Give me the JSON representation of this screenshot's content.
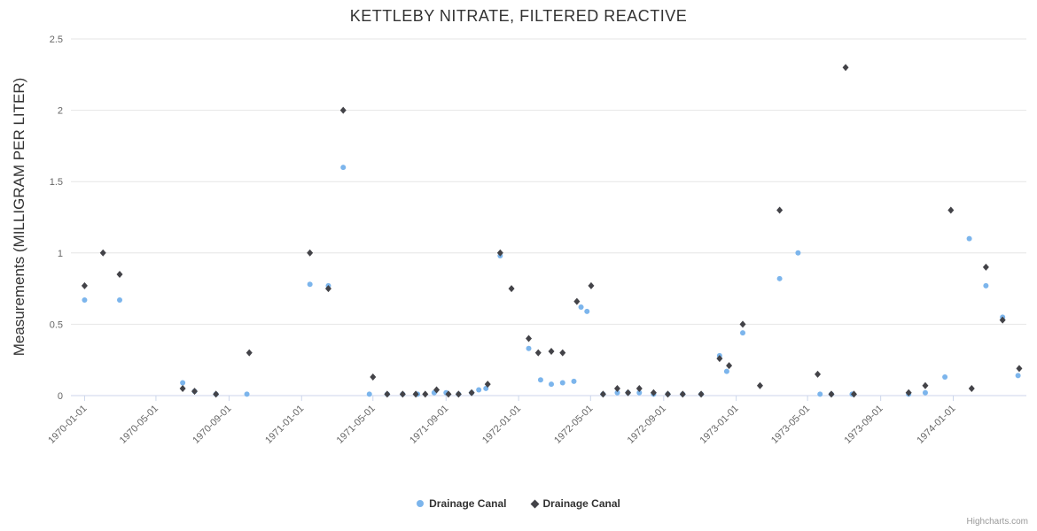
{
  "title": "KETTLEBY NITRATE, FILTERED REACTIVE",
  "credits": "Highcharts.com",
  "colors": {
    "series1": "#7cb5ec",
    "series2": "#434348",
    "grid": "#e6e6e6",
    "axis": "#ccd6eb"
  },
  "chart_data": {
    "type": "scatter",
    "title": "KETTLEBY NITRATE, FILTERED REACTIVE",
    "xlabel": "",
    "ylabel": "Measurements (MILLIGRAM PER LITER)",
    "ylim": [
      0,
      2.5
    ],
    "y_ticks": [
      0,
      0.5,
      1,
      1.5,
      2,
      2.5
    ],
    "x_range": [
      "1969-12-09",
      "1974-05-04"
    ],
    "x_ticks": [
      "1970-01-01",
      "1970-05-01",
      "1970-09-01",
      "1971-01-01",
      "1971-05-01",
      "1971-09-01",
      "1972-01-01",
      "1972-05-01",
      "1972-09-01",
      "1973-01-01",
      "1973-05-01",
      "1973-09-01",
      "1974-01-01"
    ],
    "grid": "horizontal",
    "legend_position": "bottom",
    "series": [
      {
        "name": "Drainage Canal",
        "marker": "circle",
        "color": "#7cb5ec",
        "points": [
          [
            "1970-01-01",
            0.67
          ],
          [
            "1970-03-01",
            0.67
          ],
          [
            "1970-06-15",
            0.09
          ],
          [
            "1970-07-05",
            0.03
          ],
          [
            "1970-08-10",
            0.01
          ],
          [
            "1970-10-01",
            0.01
          ],
          [
            "1971-01-15",
            0.78
          ],
          [
            "1971-02-15",
            0.77
          ],
          [
            "1971-03-12",
            1.6
          ],
          [
            "1971-04-25",
            0.01
          ],
          [
            "1971-05-25",
            0.01
          ],
          [
            "1971-06-20",
            0.01
          ],
          [
            "1971-07-15",
            0.01
          ],
          [
            "1971-08-12",
            0.02
          ],
          [
            "1971-09-01",
            0.02
          ],
          [
            "1971-09-22",
            0.01
          ],
          [
            "1971-10-14",
            0.02
          ],
          [
            "1971-10-26",
            0.04
          ],
          [
            "1971-11-07",
            0.05
          ],
          [
            "1971-12-01",
            0.98
          ],
          [
            "1972-01-18",
            0.33
          ],
          [
            "1972-02-07",
            0.11
          ],
          [
            "1972-02-25",
            0.08
          ],
          [
            "1972-03-15",
            0.09
          ],
          [
            "1972-04-03",
            0.1
          ],
          [
            "1972-04-15",
            0.62
          ],
          [
            "1972-04-25",
            0.59
          ],
          [
            "1972-05-22",
            0.01
          ],
          [
            "1972-06-15",
            0.02
          ],
          [
            "1972-07-03",
            0.02
          ],
          [
            "1972-07-22",
            0.02
          ],
          [
            "1972-08-15",
            0.01
          ],
          [
            "1972-09-08",
            0.01
          ],
          [
            "1972-10-03",
            0.01
          ],
          [
            "1972-11-03",
            0.01
          ],
          [
            "1972-12-04",
            0.28
          ],
          [
            "1972-12-16",
            0.17
          ],
          [
            "1973-01-12",
            0.44
          ],
          [
            "1973-03-15",
            0.82
          ],
          [
            "1973-04-15",
            1.0
          ],
          [
            "1973-05-22",
            0.01
          ],
          [
            "1973-06-10",
            0.01
          ],
          [
            "1973-07-15",
            0.01
          ],
          [
            "1973-10-18",
            0.01
          ],
          [
            "1973-11-15",
            0.02
          ],
          [
            "1973-12-18",
            0.13
          ],
          [
            "1974-01-28",
            1.1
          ],
          [
            "1974-02-25",
            0.77
          ],
          [
            "1974-03-25",
            0.55
          ],
          [
            "1974-04-20",
            0.14
          ]
        ]
      },
      {
        "name": "Drainage Canal",
        "marker": "diamond",
        "color": "#434348",
        "points": [
          [
            "1970-01-01",
            0.77
          ],
          [
            "1970-02-01",
            1.0
          ],
          [
            "1970-03-01",
            0.85
          ],
          [
            "1970-06-15",
            0.05
          ],
          [
            "1970-07-05",
            0.03
          ],
          [
            "1970-08-10",
            0.01
          ],
          [
            "1970-10-05",
            0.3
          ],
          [
            "1971-01-15",
            1.0
          ],
          [
            "1971-02-15",
            0.75
          ],
          [
            "1971-03-12",
            2.0
          ],
          [
            "1971-05-01",
            0.13
          ],
          [
            "1971-05-25",
            0.01
          ],
          [
            "1971-06-20",
            0.01
          ],
          [
            "1971-07-12",
            0.01
          ],
          [
            "1971-07-28",
            0.01
          ],
          [
            "1971-08-16",
            0.04
          ],
          [
            "1971-09-05",
            0.01
          ],
          [
            "1971-09-22",
            0.01
          ],
          [
            "1971-10-14",
            0.02
          ],
          [
            "1971-11-10",
            0.08
          ],
          [
            "1971-12-01",
            1.0
          ],
          [
            "1971-12-20",
            0.75
          ],
          [
            "1972-01-18",
            0.4
          ],
          [
            "1972-02-03",
            0.3
          ],
          [
            "1972-02-25",
            0.31
          ],
          [
            "1972-03-15",
            0.3
          ],
          [
            "1972-04-08",
            0.66
          ],
          [
            "1972-05-02",
            0.77
          ],
          [
            "1972-05-22",
            0.01
          ],
          [
            "1972-06-15",
            0.05
          ],
          [
            "1972-07-03",
            0.02
          ],
          [
            "1972-07-22",
            0.05
          ],
          [
            "1972-08-15",
            0.02
          ],
          [
            "1972-09-08",
            0.01
          ],
          [
            "1972-10-03",
            0.01
          ],
          [
            "1972-11-03",
            0.01
          ],
          [
            "1972-12-04",
            0.26
          ],
          [
            "1972-12-20",
            0.21
          ],
          [
            "1973-01-12",
            0.5
          ],
          [
            "1973-02-10",
            0.07
          ],
          [
            "1973-03-15",
            1.3
          ],
          [
            "1973-05-18",
            0.15
          ],
          [
            "1973-06-10",
            0.01
          ],
          [
            "1973-07-04",
            2.3
          ],
          [
            "1973-07-18",
            0.01
          ],
          [
            "1973-10-18",
            0.02
          ],
          [
            "1973-11-15",
            0.07
          ],
          [
            "1973-12-28",
            1.3
          ],
          [
            "1974-02-01",
            0.05
          ],
          [
            "1974-02-25",
            0.9
          ],
          [
            "1974-03-25",
            0.53
          ],
          [
            "1974-04-22",
            0.19
          ]
        ]
      }
    ]
  }
}
